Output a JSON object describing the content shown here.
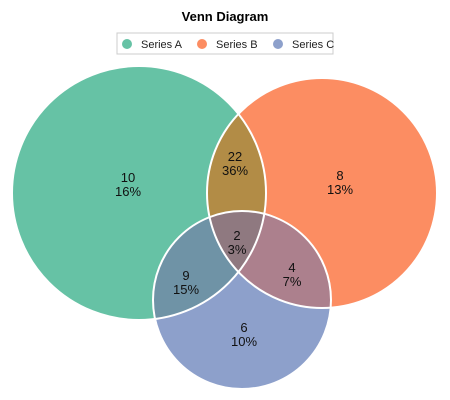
{
  "chart_data": {
    "type": "venn",
    "title": "Venn Diagram",
    "legend_position": "top",
    "series": [
      {
        "name": "Series A",
        "color": "#66c2a5"
      },
      {
        "name": "Series B",
        "color": "#fc8d62"
      },
      {
        "name": "Series C",
        "color": "#8da0cb"
      }
    ],
    "regions": [
      {
        "sets": [
          "Series A"
        ],
        "value": 10,
        "percent": "16%"
      },
      {
        "sets": [
          "Series B"
        ],
        "value": 8,
        "percent": "13%"
      },
      {
        "sets": [
          "Series C"
        ],
        "value": 6,
        "percent": "10%"
      },
      {
        "sets": [
          "Series A",
          "Series B"
        ],
        "value": 22,
        "percent": "36%"
      },
      {
        "sets": [
          "Series A",
          "Series C"
        ],
        "value": 9,
        "percent": "15%"
      },
      {
        "sets": [
          "Series B",
          "Series C"
        ],
        "value": 4,
        "percent": "7%"
      },
      {
        "sets": [
          "Series A",
          "Series B",
          "Series C"
        ],
        "value": 2,
        "percent": "3%"
      }
    ]
  }
}
